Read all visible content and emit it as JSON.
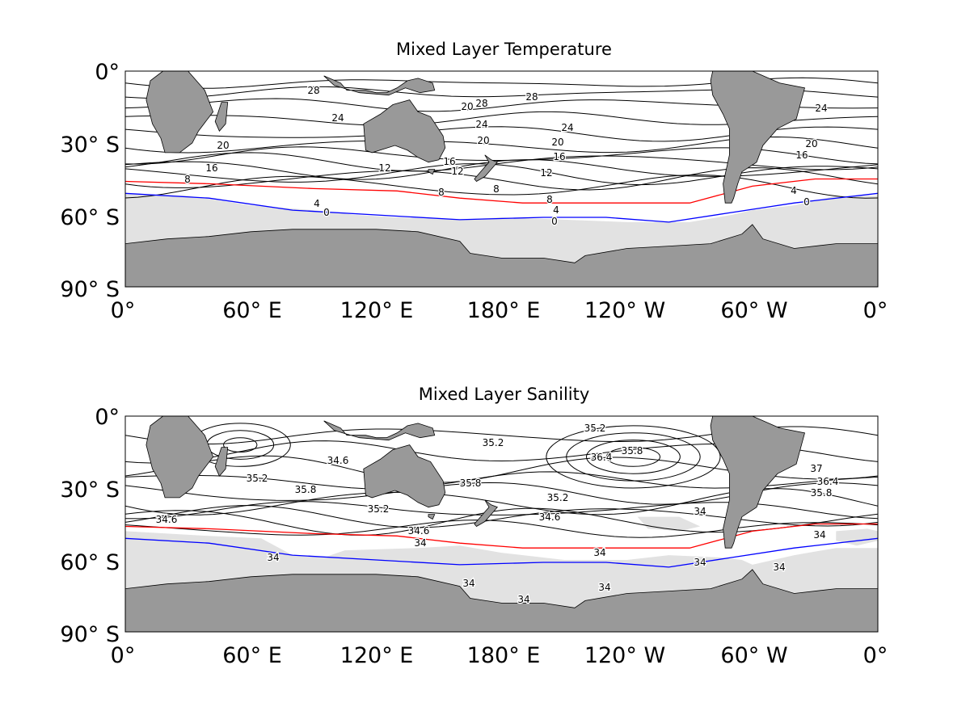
{
  "colors": {
    "land": "#999999",
    "ice": "#e2e2e2",
    "ocean": "#ffffff",
    "front_red": "#ff0000",
    "front_blue": "#0000ff",
    "contour": "#000000"
  },
  "x_ticks": [
    "0°",
    "60° E",
    "120° E",
    "180° E",
    "120° W",
    "60° W",
    "0°"
  ],
  "y_ticks": [
    "0°",
    "30° S",
    "60° S",
    "90° S"
  ],
  "panels": [
    {
      "title": "Mixed Layer Temperature",
      "contour_labels": [
        "28",
        "28",
        "28",
        "24",
        "24",
        "24",
        "24",
        "20",
        "20",
        "20",
        "20",
        "20",
        "16",
        "16",
        "16",
        "16",
        "12",
        "12",
        "12",
        "8",
        "8",
        "8",
        "8",
        "4",
        "4",
        "4",
        "0",
        "0",
        "0"
      ]
    },
    {
      "title": "Mixed Layer Sanility",
      "contour_labels": [
        "35.2",
        "35.2",
        "35.8",
        "36.4",
        "34.6",
        "35.2",
        "35.8",
        "35.8",
        "35.2",
        "35.2",
        "34.6",
        "34.6",
        "34.6",
        "37",
        "36.4",
        "35.8",
        "34",
        "34",
        "34",
        "34",
        "34",
        "34",
        "34",
        "34",
        "34",
        "34"
      ]
    }
  ],
  "chart_data": [
    {
      "type": "heatmap",
      "title": "Mixed Layer Temperature",
      "xlabel": "",
      "ylabel": "",
      "xlim": [
        0,
        360
      ],
      "ylim": [
        -90,
        0
      ],
      "x_tick_labels": [
        "0°",
        "60° E",
        "120° E",
        "180° E",
        "120° W",
        "60° W",
        "0°"
      ],
      "y_tick_labels": [
        "0°",
        "30° S",
        "60° S",
        "90° S"
      ],
      "contour_levels": [
        28,
        24,
        20,
        16,
        12,
        8,
        4,
        0
      ],
      "red_front_lat_S": [
        [
          0,
          46
        ],
        [
          40,
          47
        ],
        [
          90,
          49
        ],
        [
          130,
          50
        ],
        [
          160,
          53
        ],
        [
          190,
          55
        ],
        [
          230,
          55
        ],
        [
          270,
          55
        ],
        [
          300,
          48
        ],
        [
          330,
          45
        ],
        [
          360,
          45
        ]
      ],
      "blue_front_lat_S": [
        [
          0,
          51
        ],
        [
          40,
          53
        ],
        [
          80,
          58
        ],
        [
          120,
          60
        ],
        [
          160,
          62
        ],
        [
          200,
          61
        ],
        [
          230,
          61
        ],
        [
          260,
          63
        ],
        [
          290,
          59
        ],
        [
          320,
          55
        ],
        [
          360,
          51
        ]
      ]
    },
    {
      "type": "heatmap",
      "title": "Mixed Layer Sanility",
      "xlabel": "",
      "ylabel": "",
      "xlim": [
        0,
        360
      ],
      "ylim": [
        -90,
        0
      ],
      "x_tick_labels": [
        "0°",
        "60° E",
        "120° E",
        "180° E",
        "120° W",
        "60° W",
        "0°"
      ],
      "y_tick_labels": [
        "0°",
        "30° S",
        "60° S",
        "90° S"
      ],
      "contour_levels": [
        37,
        36.4,
        35.8,
        35.2,
        34.6,
        34
      ],
      "red_front_lat_S": [
        [
          0,
          46
        ],
        [
          40,
          47
        ],
        [
          90,
          49
        ],
        [
          130,
          50
        ],
        [
          160,
          53
        ],
        [
          190,
          55
        ],
        [
          230,
          55
        ],
        [
          270,
          55
        ],
        [
          300,
          48
        ],
        [
          330,
          45
        ],
        [
          360,
          45
        ]
      ],
      "blue_front_lat_S": [
        [
          0,
          51
        ],
        [
          40,
          53
        ],
        [
          80,
          58
        ],
        [
          120,
          60
        ],
        [
          160,
          62
        ],
        [
          200,
          61
        ],
        [
          230,
          61
        ],
        [
          260,
          63
        ],
        [
          290,
          59
        ],
        [
          320,
          55
        ],
        [
          360,
          51
        ]
      ]
    }
  ]
}
